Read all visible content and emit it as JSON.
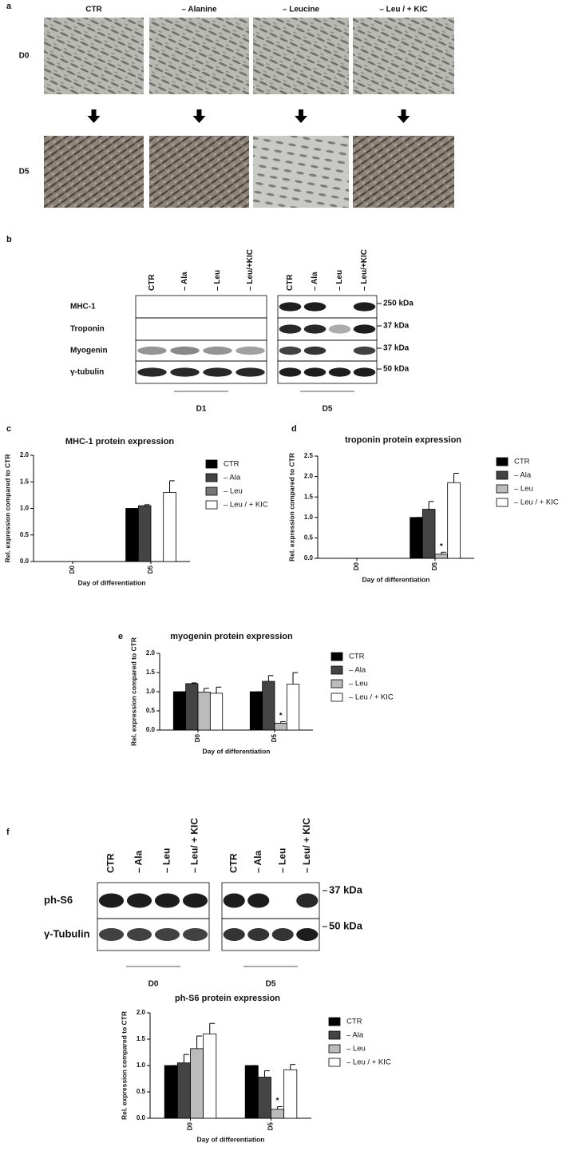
{
  "panel_a": {
    "label": "a",
    "columns": [
      "CTR",
      "– Alanine",
      "– Leucine",
      "– Leu / + KIC"
    ],
    "rows": [
      "D0",
      "D5"
    ]
  },
  "panel_b": {
    "label": "b",
    "lanes": [
      "CTR",
      "– Ala",
      "– Leu",
      "– Leu/+KIC"
    ],
    "rows": [
      "MHC-1",
      "Troponin",
      "Myogenin",
      "γ-tubulin"
    ],
    "sizes": [
      "250 kDa",
      "37 kDa",
      "37 kDa",
      "50 kDa"
    ],
    "groups": [
      "D1",
      "D5"
    ]
  },
  "panel_f": {
    "label": "f",
    "lanes": [
      "CTR",
      "– Ala",
      "– Leu",
      "– Leu/ + KIC"
    ],
    "rows": [
      "ph-S6",
      "γ-Tubulin"
    ],
    "sizes": [
      "37 kDa",
      "50 kDa"
    ],
    "groups": [
      "D0",
      "D5"
    ]
  },
  "chart_data": [
    {
      "panel": "c",
      "type": "bar",
      "title": "MHC-1 protein expression",
      "ylabel": "Rel. expression compared to CTR",
      "xlabel": "Day of differentiation",
      "categories": [
        "D0",
        "D5"
      ],
      "series": [
        {
          "name": "CTR",
          "color": "#000000",
          "values": [
            null,
            1.0
          ],
          "errors": [
            null,
            0
          ]
        },
        {
          "name": "– Ala",
          "color": "#444444",
          "values": [
            null,
            1.05
          ],
          "errors": [
            null,
            0.02
          ]
        },
        {
          "name": "– Leu",
          "color": "#777777",
          "values": [
            null,
            null
          ],
          "errors": [
            null,
            null
          ]
        },
        {
          "name": "– Leu / + KIC",
          "color": "#ffffff",
          "values": [
            null,
            1.3
          ],
          "errors": [
            null,
            0.22
          ]
        }
      ],
      "ylim": [
        0,
        2
      ],
      "yticks": [
        {
          "value": 0,
          "label": "0.0"
        },
        {
          "value": 0.5,
          "label": "0.5"
        },
        {
          "value": 1,
          "label": "1.0"
        },
        {
          "value": 1.5,
          "label": "1.5"
        },
        {
          "value": 2,
          "label": "2.0"
        }
      ],
      "legend": "right"
    },
    {
      "panel": "d",
      "type": "bar",
      "title": "troponin protein expression",
      "ylabel": "Rel. expression compared to CTR",
      "xlabel": "Day of differentiation",
      "categories": [
        "D0",
        "D5"
      ],
      "series": [
        {
          "name": "CTR",
          "color": "#000000",
          "values": [
            null,
            1.0
          ],
          "errors": [
            null,
            0
          ]
        },
        {
          "name": "– Ala",
          "color": "#444444",
          "values": [
            null,
            1.2
          ],
          "errors": [
            null,
            0.19
          ]
        },
        {
          "name": "– Leu",
          "color": "#bbbbbb",
          "values": [
            null,
            0.1
          ],
          "errors": [
            null,
            0.05
          ],
          "significance": [
            null,
            "*"
          ]
        },
        {
          "name": "– Leu / + KIC",
          "color": "#ffffff",
          "values": [
            null,
            1.85
          ],
          "errors": [
            null,
            0.23
          ]
        }
      ],
      "ylim": [
        0,
        2.5
      ],
      "yticks": [
        {
          "value": 0,
          "label": "0.0"
        },
        {
          "value": 0.5,
          "label": "0.5"
        },
        {
          "value": 1,
          "label": "1.0"
        },
        {
          "value": 1.5,
          "label": "1.5"
        },
        {
          "value": 2,
          "label": "2.0"
        },
        {
          "value": 2.5,
          "label": "2.5"
        }
      ],
      "legend": "right"
    },
    {
      "panel": "e",
      "type": "bar",
      "title": "myogenin protein expression",
      "ylabel": "Rel. expression compared to CTR",
      "xlabel": "Day of differentiation",
      "categories": [
        "D0",
        "D5"
      ],
      "series": [
        {
          "name": "CTR",
          "color": "#000000",
          "values": [
            1.0,
            1.0
          ],
          "errors": [
            0,
            0
          ]
        },
        {
          "name": "– Ala",
          "color": "#444444",
          "values": [
            1.21,
            1.27
          ],
          "errors": [
            0.02,
            0.15
          ]
        },
        {
          "name": "– Leu",
          "color": "#bbbbbb",
          "values": [
            0.99,
            0.18
          ],
          "errors": [
            0.1,
            0.04
          ],
          "significance": [
            null,
            "*"
          ]
        },
        {
          "name": "– Leu / + KIC",
          "color": "#ffffff",
          "values": [
            0.96,
            1.2
          ],
          "errors": [
            0.16,
            0.3
          ]
        }
      ],
      "ylim": [
        0,
        2
      ],
      "yticks": [
        {
          "value": 0,
          "label": "0.0"
        },
        {
          "value": 0.5,
          "label": "0.5"
        },
        {
          "value": 1,
          "label": "1.0"
        },
        {
          "value": 1.5,
          "label": "1.5"
        },
        {
          "value": 2,
          "label": "2.0"
        }
      ],
      "legend": "right"
    },
    {
      "type": "bar",
      "title": "ph-S6 protein expression",
      "ylabel": "Rel. expression compared to CTR",
      "xlabel": "Day of differentiation",
      "categories": [
        "D0",
        "D5"
      ],
      "series": [
        {
          "name": "CTR",
          "color": "#000000",
          "values": [
            1.0,
            1.0
          ],
          "errors": [
            0,
            0
          ]
        },
        {
          "name": "– Ala",
          "color": "#444444",
          "values": [
            1.05,
            0.78
          ],
          "errors": [
            0.16,
            0.12
          ]
        },
        {
          "name": "– Leu",
          "color": "#bbbbbb",
          "values": [
            1.32,
            0.17
          ],
          "errors": [
            0.24,
            0.05
          ],
          "significance": [
            null,
            "*"
          ]
        },
        {
          "name": "– Leu / + KIC",
          "color": "#ffffff",
          "values": [
            1.6,
            0.92
          ],
          "errors": [
            0.2,
            0.1
          ]
        }
      ],
      "ylim": [
        0,
        2
      ],
      "yticks": [
        {
          "value": 0,
          "label": "0.0"
        },
        {
          "value": 0.5,
          "label": "0.5"
        },
        {
          "value": 1,
          "label": "1.0"
        },
        {
          "value": 1.5,
          "label": "1.5"
        },
        {
          "value": 2,
          "label": "2.0"
        }
      ],
      "legend": "right"
    }
  ]
}
